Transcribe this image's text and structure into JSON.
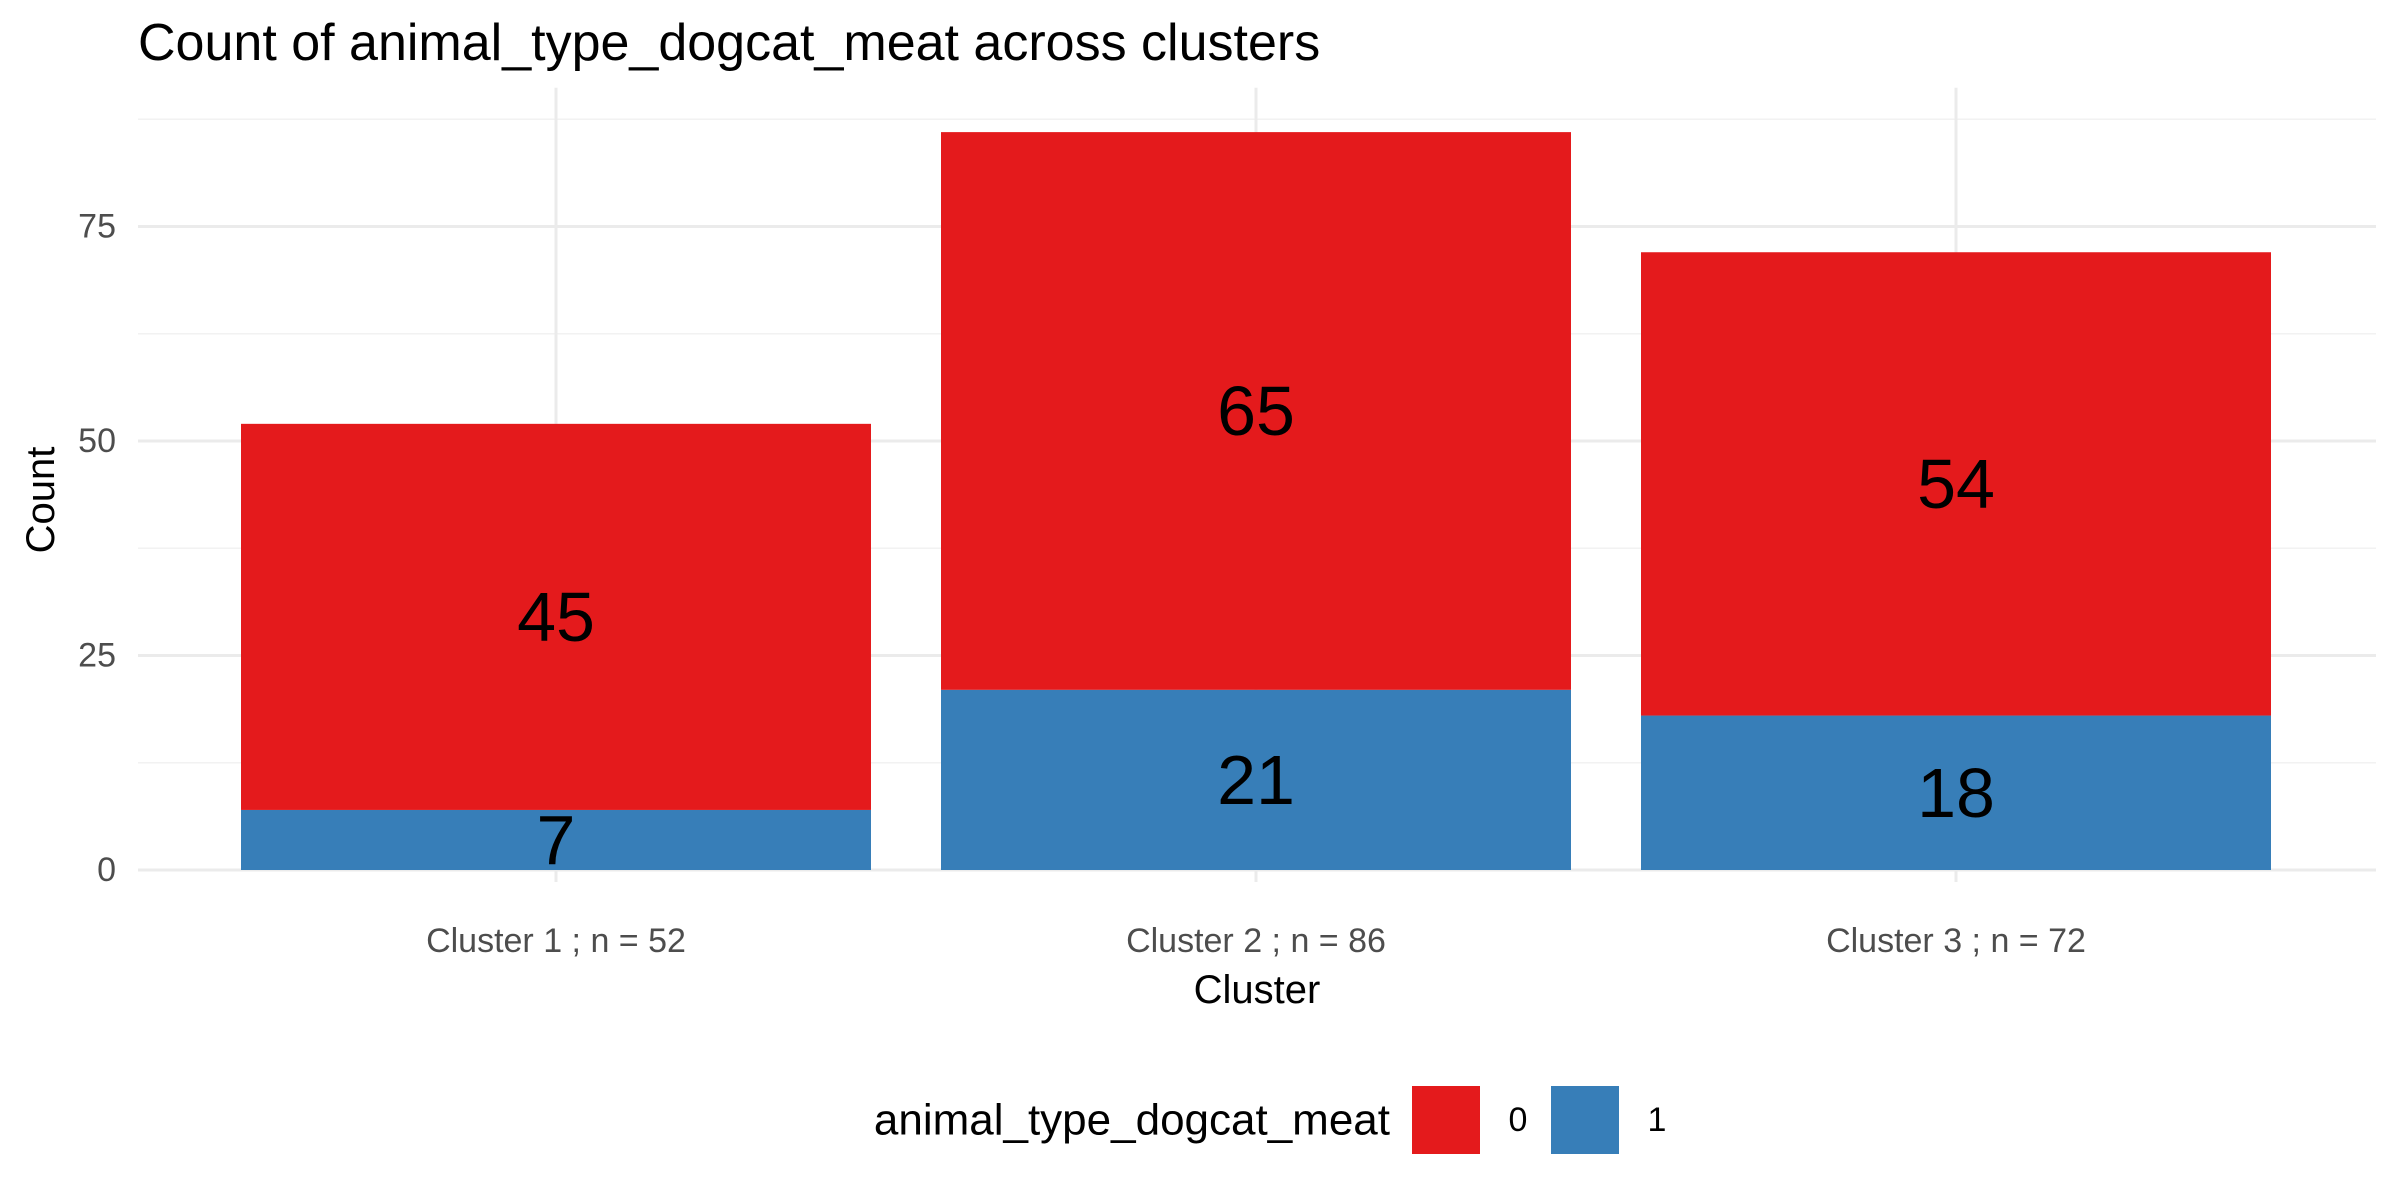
{
  "chart_data": {
    "type": "bar",
    "stacked": true,
    "title": "Count of animal_type_dogcat_meat across clusters",
    "xlabel": "Cluster",
    "ylabel": "Count",
    "categories": [
      "Cluster 1 ; n = 52",
      "Cluster 2 ; n = 86",
      "Cluster 3 ; n = 72"
    ],
    "series": [
      {
        "name": "1",
        "values": [
          7,
          21,
          18
        ],
        "color": "#377eb8"
      },
      {
        "name": "0",
        "values": [
          45,
          65,
          54
        ],
        "color": "#e41a1c"
      }
    ],
    "ylim": [
      0,
      90
    ],
    "yticks": [
      0,
      25,
      50,
      75
    ],
    "grid": true,
    "legend": {
      "title": "animal_type_dogcat_meat",
      "position": "bottom",
      "entries": [
        {
          "label": "0",
          "color": "#e41a1c"
        },
        {
          "label": "1",
          "color": "#377eb8"
        }
      ]
    }
  }
}
